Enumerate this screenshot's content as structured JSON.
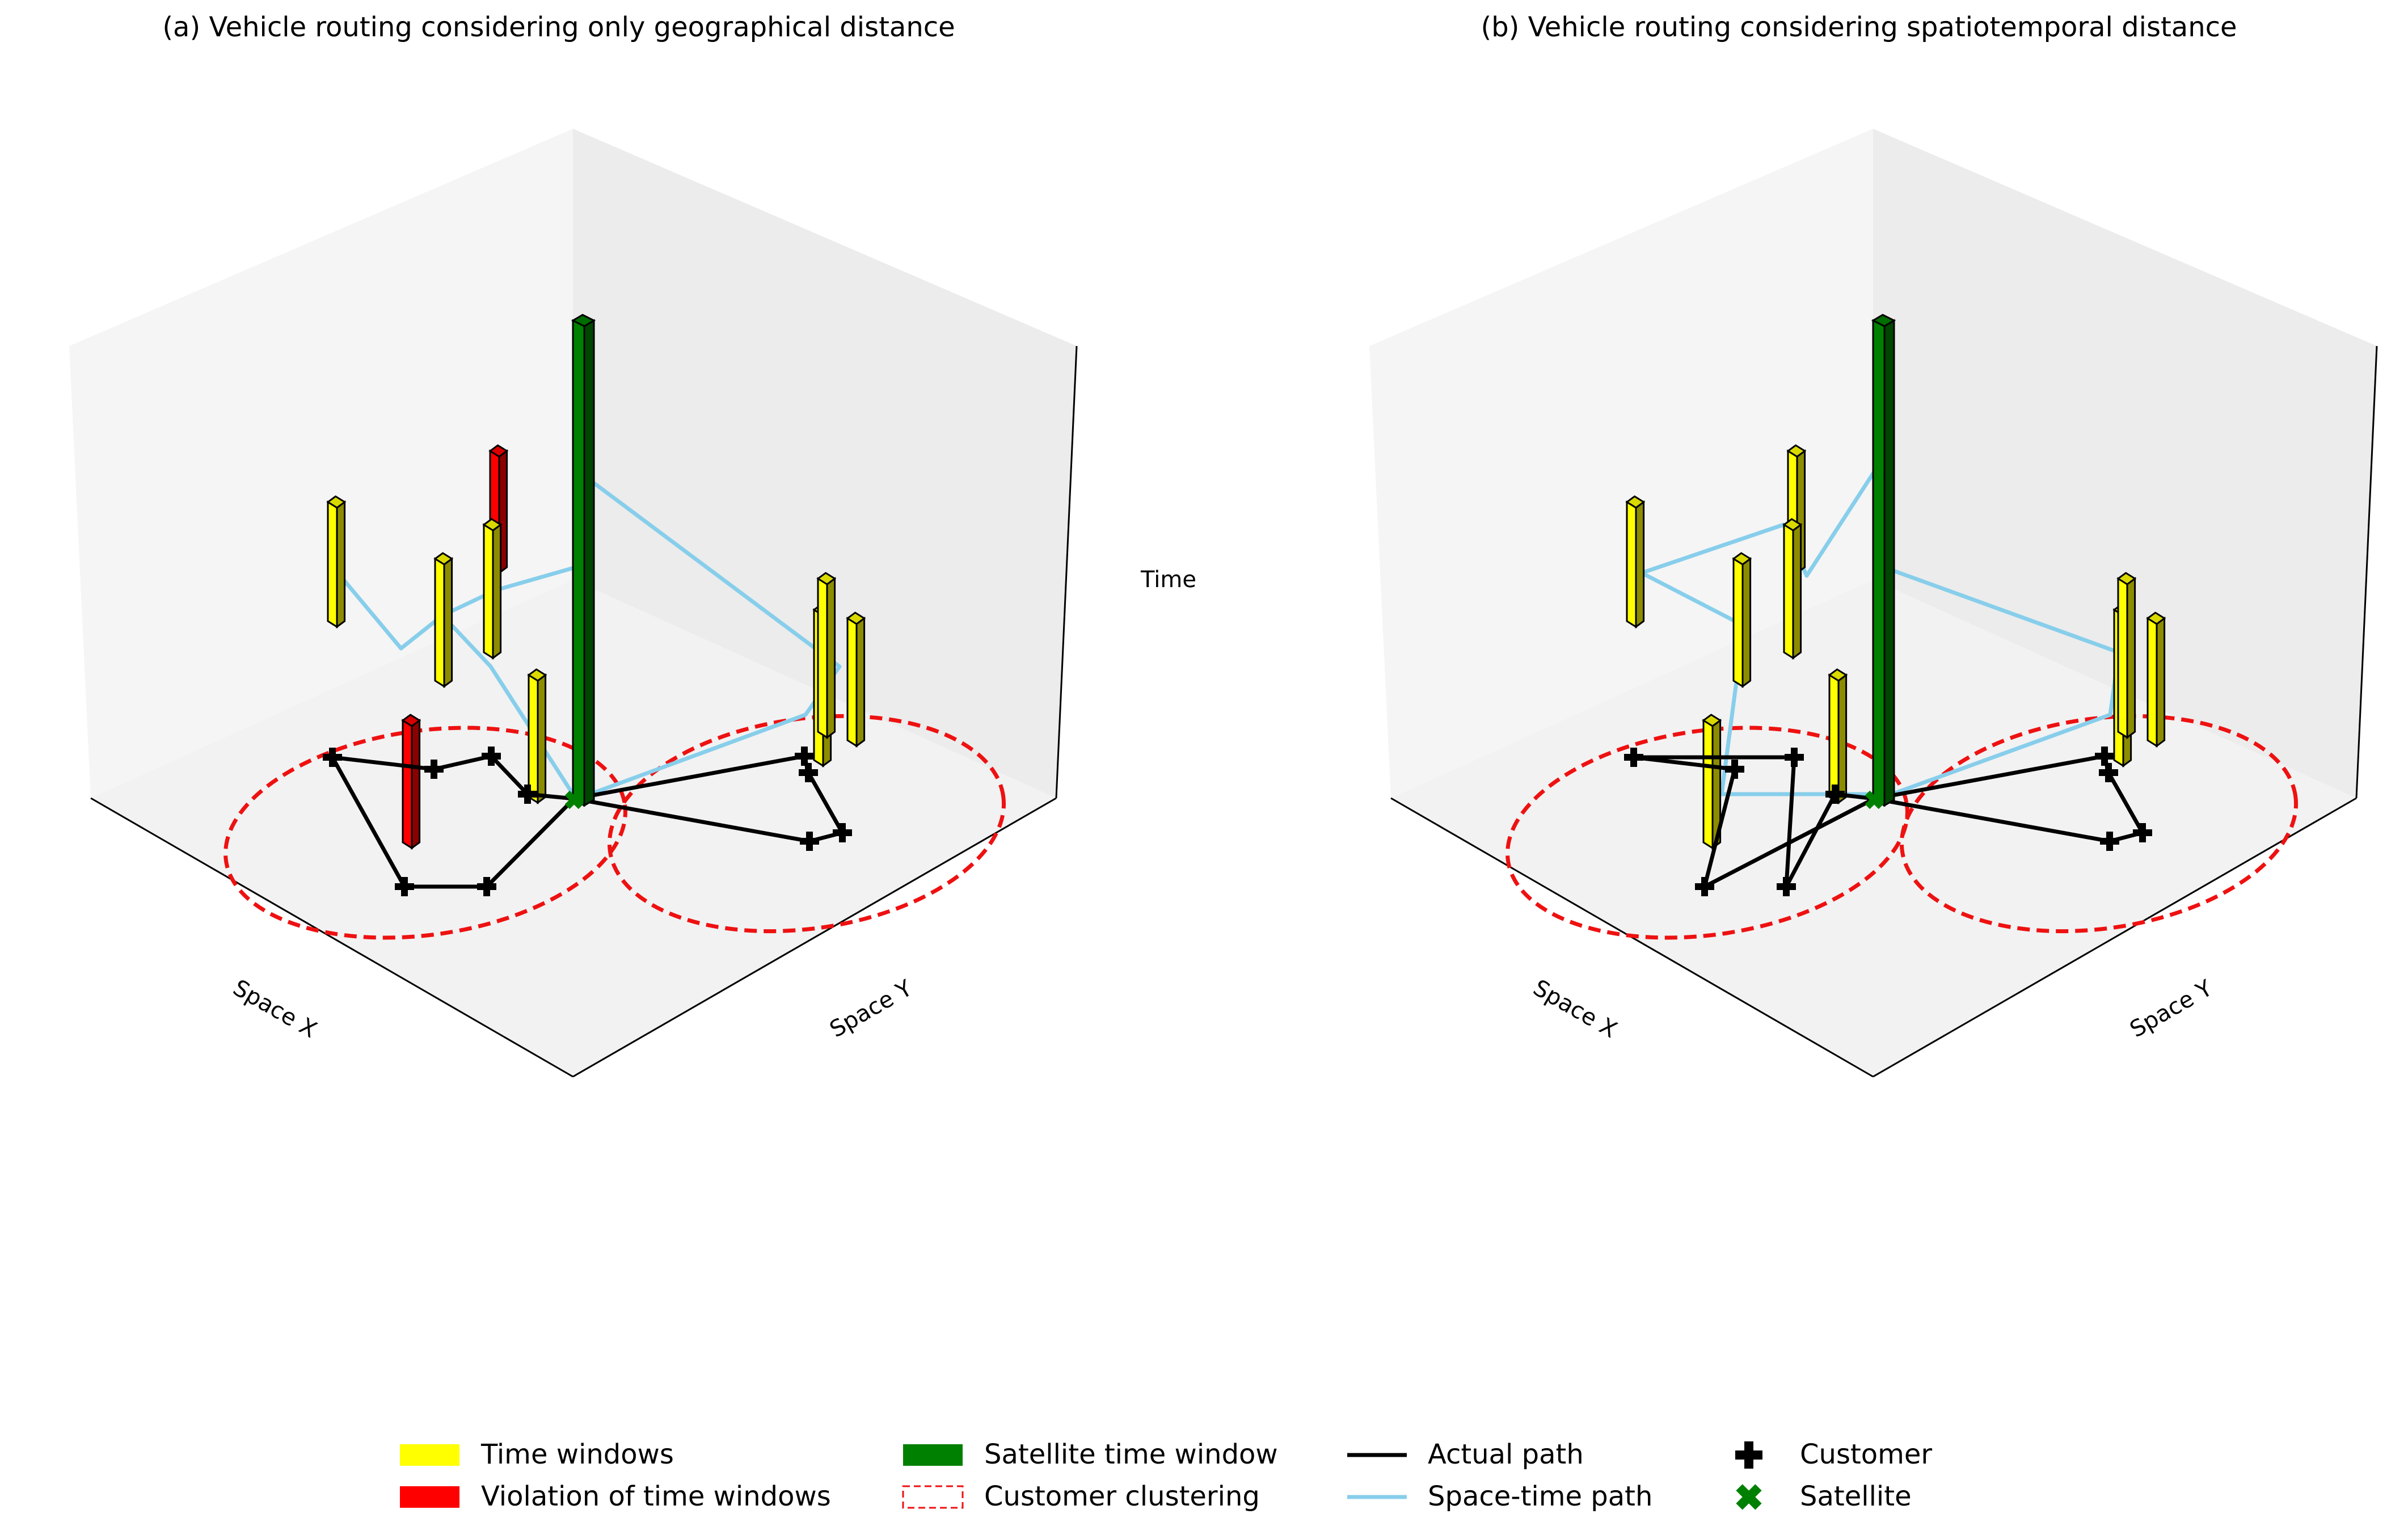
{
  "colors": {
    "time_window": "#ffff00",
    "violation": "#ff0000",
    "satellite": "#008000",
    "cluster": "#ee1111",
    "actual_path": "#000000",
    "space_time_path": "#87ceeb",
    "pane_left": "#f5f5f5",
    "pane_right": "#ececec",
    "pane_floor": "#f2f2f2"
  },
  "panels": [
    {
      "title": "(a) Vehicle routing considering only geographical distance",
      "axis_x_label": "Space X",
      "axis_y_label": "Space Y",
      "axis_z_label": "Time"
    },
    {
      "title": "(b) Vehicle routing considering spatiotemporal distance",
      "axis_x_label": "Space X",
      "axis_y_label": "Space Y",
      "axis_z_label": ""
    }
  ],
  "legend": {
    "items": [
      {
        "id": "time-windows",
        "label": "Time windows",
        "kind": "patch-yellow"
      },
      {
        "id": "violation",
        "label": "Violation of time windows",
        "kind": "patch-red"
      },
      {
        "id": "satellite-tw",
        "label": "Satellite time window",
        "kind": "patch-green"
      },
      {
        "id": "clustering",
        "label": "Customer clustering",
        "kind": "patch-dashed"
      },
      {
        "id": "actual-path",
        "label": "Actual path",
        "kind": "line-black"
      },
      {
        "id": "space-time-path",
        "label": "Space-time path",
        "kind": "line-blue"
      },
      {
        "id": "customer",
        "label": "Customer",
        "kind": "marker-plus"
      },
      {
        "id": "satellite",
        "label": "Satellite",
        "kind": "marker-x"
      }
    ]
  }
}
